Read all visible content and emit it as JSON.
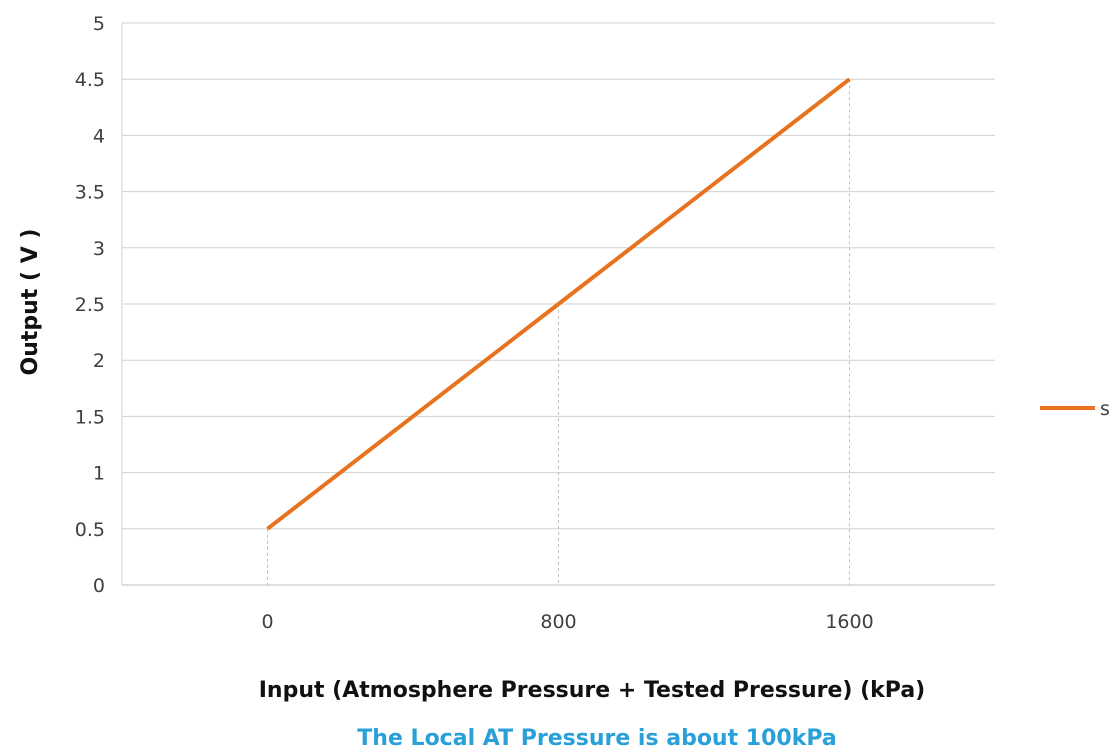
{
  "chart_data": {
    "type": "line",
    "categories": [
      "0",
      "800",
      "1600"
    ],
    "series": [
      {
        "name": "s",
        "x": [
          0,
          800,
          1600
        ],
        "values": [
          0.5,
          2.5,
          4.5
        ]
      }
    ],
    "ylim": [
      0,
      5
    ],
    "yticks": [
      "0",
      "0.5",
      "1",
      "1.5",
      "2",
      "2.5",
      "3",
      "3.5",
      "4",
      "4.5",
      "5"
    ],
    "xlabel": "Input (Atmosphere Pressure + Tested Pressure) (kPa)",
    "ylabel": "Output ( V )",
    "note": "The Local AT Pressure is about 100kPa",
    "grid": true,
    "legend_position": "right",
    "colors": {
      "series": "#E8731E",
      "grid": "#d0d0d0",
      "note": "#2aa0d8",
      "drop_lines": "#bfbfbf"
    }
  }
}
